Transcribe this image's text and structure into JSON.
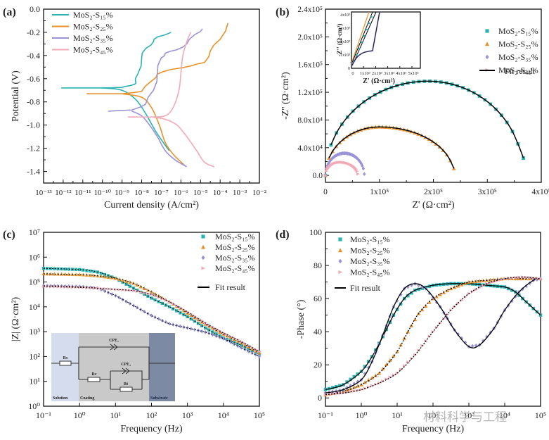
{
  "colors": {
    "s15": "#2bb3b1",
    "s25": "#e8922a",
    "s35": "#9a93d8",
    "s45": "#f2aab8",
    "fit": "#000000"
  },
  "watermark": "材料科学与工程",
  "chart_data": [
    {
      "panel": "(a)",
      "type": "line",
      "title": "",
      "xlabel": "Current density (A/cm²)",
      "ylabel": "Potential (V)",
      "xscale": "log",
      "xlim_exp": [
        -13,
        -2
      ],
      "ylim": [
        -1.5,
        0.0
      ],
      "xtick_labels": [
        "10⁻¹³",
        "10⁻¹²",
        "10⁻¹¹",
        "10⁻¹⁰",
        "10⁻⁹",
        "10⁻⁸",
        "10⁻⁷",
        "10⁻⁶",
        "10⁻⁵",
        "10⁻⁴",
        "10⁻³",
        "10⁻²"
      ],
      "ytick_labels": [
        "0.0",
        "-0.2",
        "-0.4",
        "-0.6",
        "-0.8",
        "-1.0",
        "-1.2",
        "-1.4"
      ],
      "legend": "top-left",
      "series": [
        {
          "name": "MoS₂-S₁₅%",
          "key": "s15",
          "ecorr": -0.68,
          "icorr_exp": -9.6,
          "anodic": [
            [
              -12.1,
              -0.68
            ],
            [
              -10,
              -0.68
            ],
            [
              -9,
              -0.675
            ],
            [
              -8.6,
              -0.66
            ],
            [
              -8.3,
              -0.64
            ],
            [
              -8.2,
              -0.56
            ],
            [
              -8.0,
              -0.42
            ],
            [
              -7.8,
              -0.34
            ],
            [
              -7.4,
              -0.28
            ],
            [
              -7.2,
              -0.24
            ],
            [
              -6.5,
              -0.2
            ]
          ],
          "cathodic": [
            [
              -10,
              -0.68
            ],
            [
              -9,
              -0.7
            ],
            [
              -8.3,
              -0.78
            ],
            [
              -7.8,
              -0.9
            ],
            [
              -7.3,
              -1.05
            ],
            [
              -6.9,
              -1.15
            ],
            [
              -6.6,
              -1.22
            ]
          ]
        },
        {
          "name": "MoS₂-S₂₅%",
          "key": "s25",
          "ecorr": -0.73,
          "anodic": [
            [
              -10.8,
              -0.73
            ],
            [
              -9,
              -0.73
            ],
            [
              -8,
              -0.71
            ],
            [
              -7.5,
              -0.62
            ],
            [
              -7.2,
              -0.56
            ],
            [
              -6.5,
              -0.52
            ],
            [
              -5.5,
              -0.49
            ],
            [
              -4.8,
              -0.46
            ],
            [
              -4.5,
              -0.36
            ],
            [
              -4.0,
              -0.26
            ],
            [
              -3.6,
              -0.12
            ]
          ],
          "cathodic": [
            [
              -9,
              -0.73
            ],
            [
              -8,
              -0.76
            ],
            [
              -7.5,
              -0.85
            ],
            [
              -7.1,
              -1.0
            ],
            [
              -6.8,
              -1.15
            ],
            [
              -6.4,
              -1.25
            ],
            [
              -5.8,
              -1.35
            ]
          ]
        },
        {
          "name": "MoS₂-S₃₅%",
          "key": "s35",
          "ecorr": -0.88,
          "anodic": [
            [
              -9.7,
              -0.88
            ],
            [
              -8.5,
              -0.87
            ],
            [
              -7.8,
              -0.82
            ],
            [
              -7.4,
              -0.7
            ],
            [
              -7.2,
              -0.55
            ],
            [
              -7.0,
              -0.42
            ],
            [
              -6.8,
              -0.38
            ],
            [
              -6.2,
              -0.35
            ],
            [
              -5.7,
              -0.3
            ],
            [
              -5.3,
              -0.22
            ],
            [
              -4.9,
              -0.17
            ]
          ],
          "cathodic": [
            [
              -8.5,
              -0.88
            ],
            [
              -8,
              -0.92
            ],
            [
              -7.6,
              -1.0
            ],
            [
              -7.2,
              -1.1
            ],
            [
              -6.8,
              -1.22
            ],
            [
              -6.3,
              -1.3
            ],
            [
              -5.7,
              -1.36
            ]
          ]
        },
        {
          "name": "MoS₂-S₄₅%",
          "key": "s45",
          "ecorr": -0.93,
          "anodic": [
            [
              -8.7,
              -0.93
            ],
            [
              -7.5,
              -0.93
            ],
            [
              -6.8,
              -0.92
            ],
            [
              -6.4,
              -0.85
            ],
            [
              -6.1,
              -0.7
            ],
            [
              -6.0,
              -0.55
            ],
            [
              -5.9,
              -0.4
            ],
            [
              -5.7,
              -0.28
            ],
            [
              -5.5,
              -0.2
            ]
          ],
          "cathodic": [
            [
              -7.5,
              -0.93
            ],
            [
              -6.8,
              -0.95
            ],
            [
              -6.2,
              -1.0
            ],
            [
              -5.7,
              -1.1
            ],
            [
              -5.2,
              -1.22
            ],
            [
              -4.8,
              -1.32
            ],
            [
              -4.3,
              -1.36
            ]
          ]
        }
      ]
    },
    {
      "panel": "(b)",
      "type": "scatter",
      "xlabel": "Z' (Ω·cm²)",
      "ylabel": "-Z'' (Ω·cm²)",
      "xlim": [
        0,
        400000
      ],
      "ylim": [
        -10000,
        240000
      ],
      "xtick_labels": [
        "0",
        "1x10⁵",
        "2x10⁵",
        "3x10⁵",
        "4x10⁵"
      ],
      "ytick_labels": [
        "0.0",
        "4.0x10⁴",
        "8.0x10⁴",
        "1.2x10⁵",
        "1.6x10⁵",
        "2.0x10⁵",
        "2.4x10⁵"
      ],
      "legend": "top-right",
      "legend_entries": [
        "MoS₂-S₁₅%",
        "MoS₂-S₂₅%",
        "MoS₂-S₃₅%",
        "MoS₂-S₄₅%",
        "Fit result"
      ],
      "series": [
        {
          "name": "MoS₂-S₁₅%",
          "key": "s15",
          "marker": "square",
          "arc": {
            "center": 190000,
            "radius": 180000,
            "peak": 136000,
            "end": 367000,
            "end_y": 25000
          }
        },
        {
          "name": "MoS₂-S₂₅%",
          "key": "s25",
          "marker": "triangle",
          "arc": {
            "center": 100000,
            "radius": 100000,
            "peak": 70000,
            "end": 238000,
            "end_y": 10000
          }
        },
        {
          "name": "MoS₂-S₃₅%",
          "key": "s35",
          "marker": "diamond",
          "arc": {
            "center": 35000,
            "radius": 35000,
            "peak": 32000,
            "end": 72000,
            "end_y": 2000
          }
        },
        {
          "name": "MoS₂-S₄₅%",
          "key": "s45",
          "marker": "right-triangle",
          "arc": {
            "center": 28000,
            "radius": 30000,
            "peak": 19000,
            "end": 60000,
            "end_y": 2000
          }
        }
      ],
      "inset": {
        "xlabel": "Z' (Ω·cm²)",
        "ylabel": "-Z'' (Ω·cm²)",
        "xtick_labels": [
          "0",
          "1x10³",
          "2x10³",
          "3x10³",
          "4x10³",
          "5x10³"
        ],
        "ytick_labels": [
          "0",
          "1x10³",
          "2x10³",
          "3x10³",
          "4x10³"
        ]
      }
    },
    {
      "panel": "(c)",
      "type": "scatter",
      "xlabel": "Frequency (Hz)",
      "ylabel": "|Z| (Ω·cm²)",
      "xscale": "log",
      "yscale": "log",
      "xlim_exp": [
        -1,
        5
      ],
      "ylim_exp": [
        0,
        7
      ],
      "xtick_labels": [
        "10⁻¹",
        "10⁰",
        "10¹",
        "10²",
        "10³",
        "10⁴",
        "10⁵"
      ],
      "ytick_labels": [
        "10⁰",
        "10¹",
        "10²",
        "10³",
        "10⁴",
        "10⁵",
        "10⁶",
        "10⁷"
      ],
      "legend": "top-right",
      "legend_entries": [
        "MoS₂-S₁₅%",
        "MoS₂-S₂₅%",
        "MoS₂-S₃₅%",
        "MoS₂-S₄₅%",
        "Fit result"
      ],
      "series": [
        {
          "name": "MoS₂-S₁₅%",
          "key": "s15",
          "marker": "square",
          "points": [
            [
              -1,
              5.55
            ],
            [
              0,
              5.5
            ],
            [
              0.5,
              5.4
            ],
            [
              1,
              5.15
            ],
            [
              1.5,
              4.75
            ],
            [
              2,
              4.35
            ],
            [
              2.5,
              4.0
            ],
            [
              3,
              3.6
            ],
            [
              3.5,
              3.15
            ],
            [
              4,
              2.75
            ],
            [
              4.5,
              2.45
            ],
            [
              5,
              2.1
            ]
          ]
        },
        {
          "name": "MoS₂-S₂₅%",
          "key": "s25",
          "marker": "triangle",
          "points": [
            [
              -1,
              5.33
            ],
            [
              0,
              5.3
            ],
            [
              0.5,
              5.25
            ],
            [
              1,
              5.15
            ],
            [
              1.5,
              4.95
            ],
            [
              2,
              4.6
            ],
            [
              2.5,
              4.2
            ],
            [
              3,
              3.75
            ],
            [
              3.5,
              3.3
            ],
            [
              4,
              2.9
            ],
            [
              4.5,
              2.55
            ],
            [
              5,
              2.15
            ]
          ]
        },
        {
          "name": "MoS₂-S₃₅%",
          "key": "s35",
          "marker": "diamond",
          "points": [
            [
              -1,
              4.85
            ],
            [
              0,
              4.82
            ],
            [
              0.5,
              4.75
            ],
            [
              1,
              4.45
            ],
            [
              1.5,
              4.05
            ],
            [
              2,
              3.65
            ],
            [
              2.5,
              3.32
            ],
            [
              3,
              3.15
            ],
            [
              3.5,
              2.98
            ],
            [
              4,
              2.72
            ],
            [
              4.5,
              2.35
            ],
            [
              5,
              2.0
            ]
          ]
        },
        {
          "name": "MoS₂-S₄₅%",
          "key": "s45",
          "marker": "right-triangle",
          "points": [
            [
              -1,
              4.82
            ],
            [
              0,
              4.78
            ],
            [
              0.5,
              4.75
            ],
            [
              1,
              4.7
            ],
            [
              1.5,
              4.65
            ],
            [
              2,
              4.5
            ],
            [
              2.5,
              4.2
            ],
            [
              3,
              3.8
            ],
            [
              3.5,
              3.35
            ],
            [
              4,
              2.95
            ],
            [
              4.5,
              2.6
            ],
            [
              5,
              2.2
            ]
          ]
        }
      ],
      "circuit": {
        "regions": [
          "Solution",
          "Coating",
          "Substrate"
        ],
        "elements": [
          "Rs",
          "CPE1",
          "Rc",
          "CPE2",
          "Rt"
        ],
        "labels": {
          "rs": "Rs",
          "cpe1": "CPE₁",
          "rc": "Rc",
          "cpe2": "CPE₂",
          "rt": "Rt"
        }
      }
    },
    {
      "panel": "(d)",
      "type": "scatter",
      "xlabel": "Frequency (Hz)",
      "ylabel": "-Phase (°)",
      "xscale": "log",
      "xlim_exp": [
        -1,
        5
      ],
      "ylim": [
        -5,
        100
      ],
      "xtick_labels": [
        "10⁻¹",
        "10⁰",
        "10¹",
        "10²",
        "10³",
        "10⁴",
        "10⁵"
      ],
      "ytick_labels": [
        "0",
        "20",
        "40",
        "60",
        "80",
        "100"
      ],
      "legend": "top-left",
      "legend_entries": [
        "MoS₂-S₁₅%",
        "MoS₂-S₂₅%",
        "MoS₂-S₃₅%",
        "MoS₂-S₄₅%",
        "Fit result"
      ],
      "series": [
        {
          "name": "MoS₂-S₁₅%",
          "key": "s15",
          "marker": "square",
          "points": [
            [
              -1,
              5
            ],
            [
              -0.5,
              8
            ],
            [
              0,
              16
            ],
            [
              0.3,
              25
            ],
            [
              0.6,
              37
            ],
            [
              0.9,
              50
            ],
            [
              1.2,
              60
            ],
            [
              1.5,
              65
            ],
            [
              2,
              68
            ],
            [
              2.5,
              69
            ],
            [
              3,
              69
            ],
            [
              3.5,
              68
            ],
            [
              4,
              67
            ],
            [
              4.3,
              64
            ],
            [
              4.6,
              58
            ],
            [
              5,
              50
            ]
          ]
        },
        {
          "name": "MoS₂-S₂₅%",
          "key": "s25",
          "marker": "triangle",
          "points": [
            [
              -1,
              2
            ],
            [
              -0.5,
              4
            ],
            [
              0,
              8
            ],
            [
              0.5,
              15
            ],
            [
              1,
              28
            ],
            [
              1.3,
              40
            ],
            [
              1.6,
              51
            ],
            [
              2,
              60
            ],
            [
              2.5,
              66
            ],
            [
              3,
              70
            ],
            [
              3.5,
              71
            ],
            [
              4,
              72
            ],
            [
              4.5,
              72
            ],
            [
              5,
              72
            ]
          ]
        },
        {
          "name": "MoS₂-S₃₅%",
          "key": "s35",
          "marker": "diamond",
          "points": [
            [
              -1,
              3
            ],
            [
              -0.5,
              5
            ],
            [
              0,
              11
            ],
            [
              0.3,
              22
            ],
            [
              0.6,
              38
            ],
            [
              0.9,
              55
            ],
            [
              1.2,
              66
            ],
            [
              1.5,
              69
            ],
            [
              1.8,
              66
            ],
            [
              2.2,
              55
            ],
            [
              2.6,
              41
            ],
            [
              3,
              31
            ],
            [
              3.3,
              32
            ],
            [
              3.7,
              42
            ],
            [
              4,
              53
            ],
            [
              4.4,
              64
            ],
            [
              4.8,
              71
            ],
            [
              5,
              72
            ]
          ]
        },
        {
          "name": "MoS₂-S₄₅%",
          "key": "s45",
          "marker": "right-triangle",
          "points": [
            [
              -1,
              2
            ],
            [
              -0.5,
              3
            ],
            [
              0,
              5
            ],
            [
              0.5,
              9
            ],
            [
              1,
              15
            ],
            [
              1.5,
              26
            ],
            [
              2,
              40
            ],
            [
              2.5,
              53
            ],
            [
              3,
              63
            ],
            [
              3.5,
              69
            ],
            [
              4,
              72
            ],
            [
              4.5,
              73
            ],
            [
              5,
              72
            ]
          ]
        }
      ]
    }
  ]
}
